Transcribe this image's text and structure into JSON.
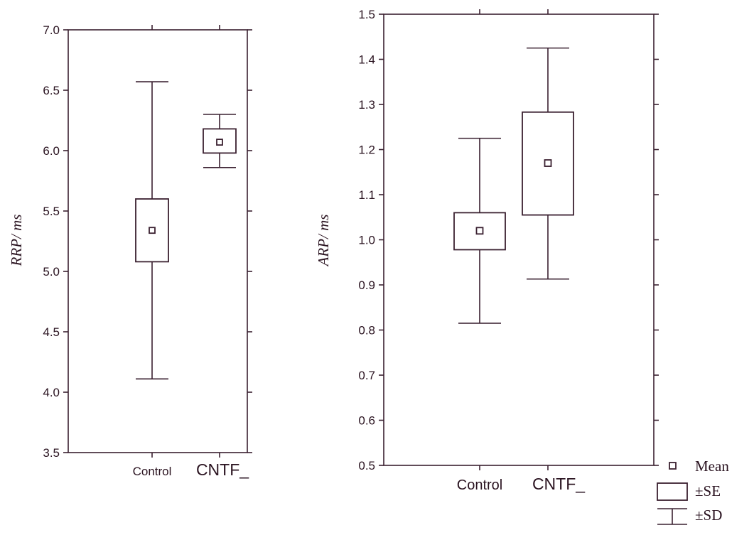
{
  "chart_data": [
    {
      "type": "box",
      "ylabel": "RRP/ ms",
      "ylim": [
        3.5,
        7.0
      ],
      "yticks": [
        "3.5",
        "4.0",
        "4.5",
        "5.0",
        "5.5",
        "6.0",
        "6.5",
        "7.0"
      ],
      "categories": [
        "Control",
        "CNTF_"
      ],
      "series": [
        {
          "category": "Control",
          "mean": 5.34,
          "se_low": 5.08,
          "se_high": 5.6,
          "sd_low": 4.11,
          "sd_high": 6.57
        },
        {
          "category": "CNTF_",
          "mean": 6.07,
          "se_low": 5.98,
          "se_high": 6.18,
          "sd_low": 5.86,
          "sd_high": 6.3
        }
      ]
    },
    {
      "type": "box",
      "ylabel": "ARP/ ms",
      "ylim": [
        0.5,
        1.5
      ],
      "yticks": [
        "0.5",
        "0.6",
        "0.7",
        "0.8",
        "0.9",
        "1.0",
        "1.1",
        "1.2",
        "1.3",
        "1.4",
        "1.5"
      ],
      "categories": [
        "Control",
        "CNTF_"
      ],
      "series": [
        {
          "category": "Control",
          "mean": 1.02,
          "se_low": 0.978,
          "se_high": 1.06,
          "sd_low": 0.815,
          "sd_high": 1.225
        },
        {
          "category": "CNTF_",
          "mean": 1.17,
          "se_low": 1.055,
          "se_high": 1.283,
          "sd_low": 0.913,
          "sd_high": 1.425
        }
      ]
    }
  ],
  "legend": {
    "mean_label": "Mean",
    "se_label": "±SE",
    "sd_label": "±SD"
  }
}
